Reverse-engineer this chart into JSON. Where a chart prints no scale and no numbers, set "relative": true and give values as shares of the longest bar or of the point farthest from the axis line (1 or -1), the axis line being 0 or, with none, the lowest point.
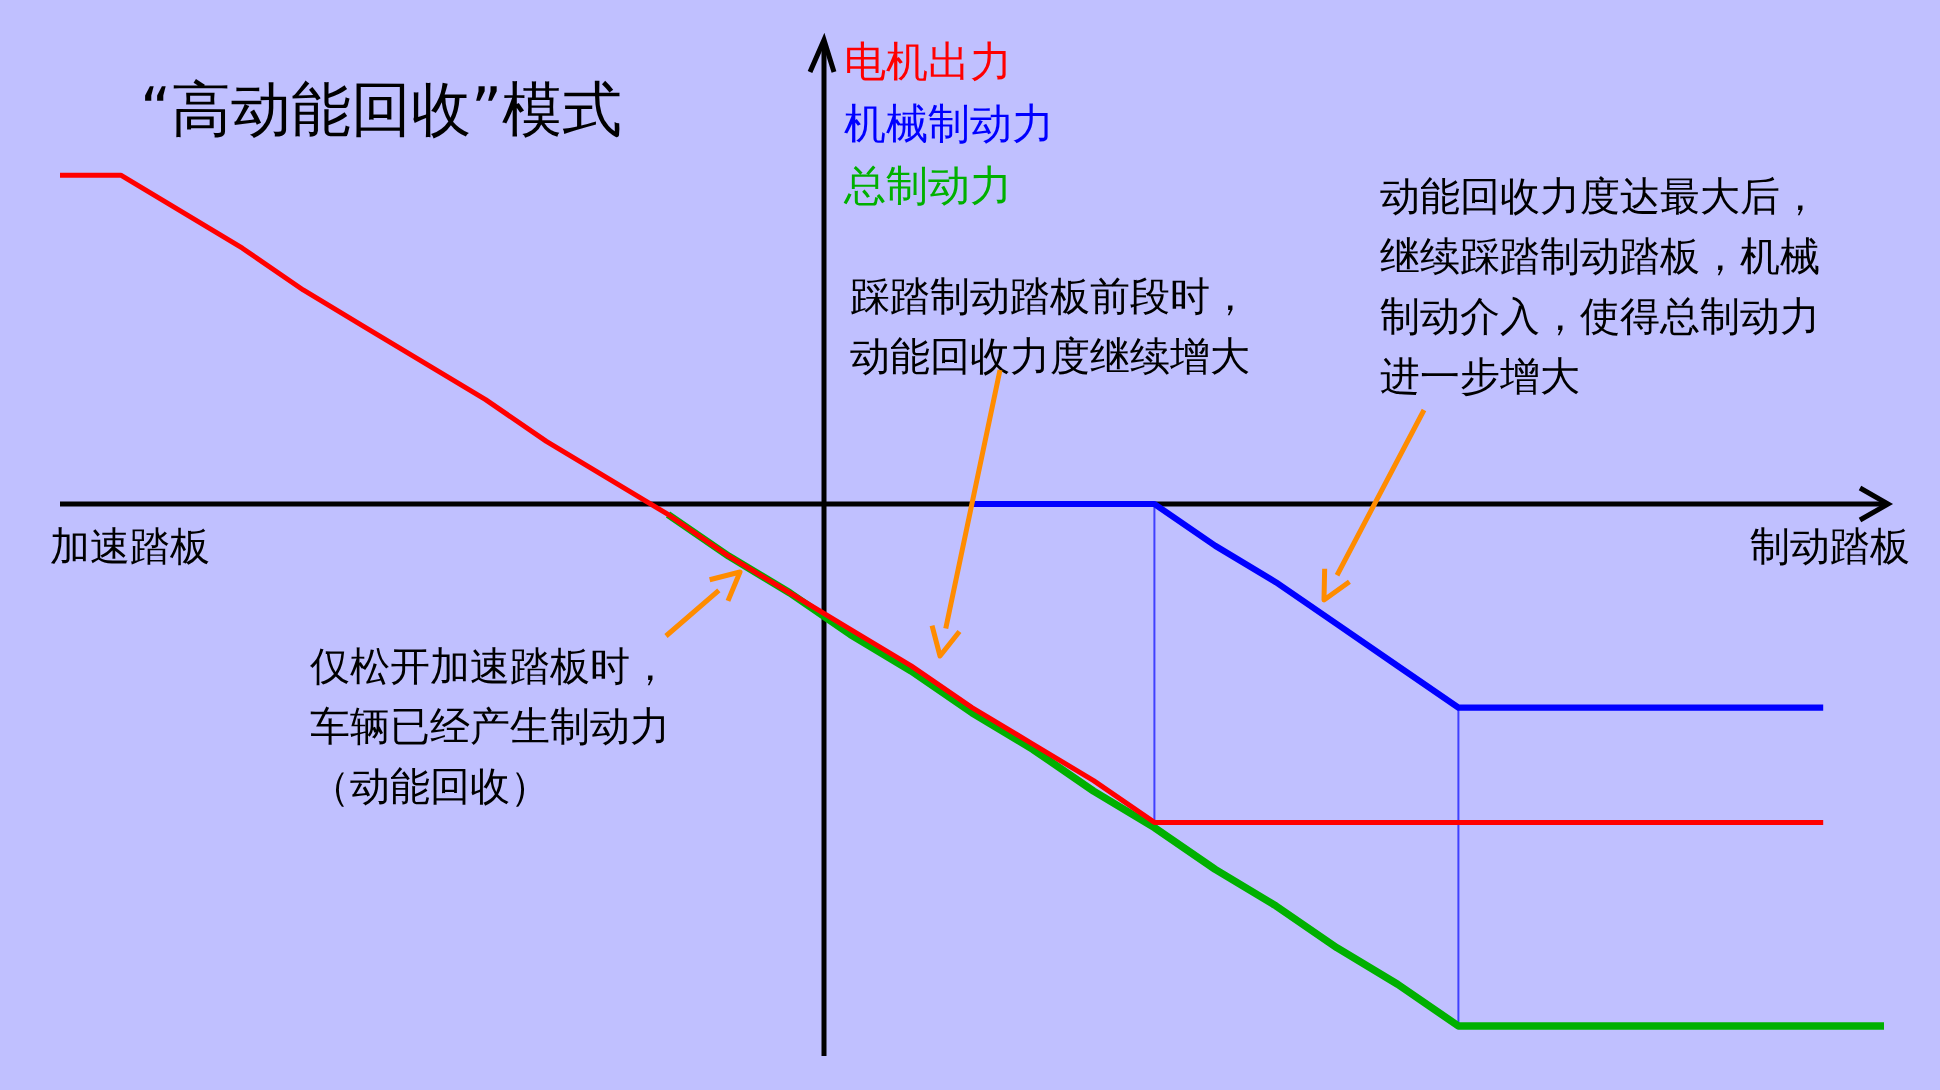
{
  "chart_data": {
    "type": "line",
    "title": "“高动能回收”模式",
    "xlabel": "制动踏板",
    "relative": true,
    "legend": "top",
    "grid": false,
    "marker": "none",
    "line_style": "solid",
    "categories": [
      null,
      null,
      null,
      null,
      null,
      null,
      null,
      null,
      null,
      null,
      null,
      null,
      null,
      null,
      null,
      null,
      null,
      null,
      null,
      null,
      null,
      null,
      null,
      null,
      null,
      null,
      null,
      null,
      null,
      null,
      null
    ],
    "series": [
      {
        "name": "电机出力",
        "color": "#ff0000",
        "values": [
          0.63,
          0.63,
          0.56,
          0.49,
          0.41,
          0.34,
          0.27,
          0.2,
          0.12,
          0.05,
          -0.02,
          -0.1,
          -0.17,
          -0.24,
          -0.31,
          -0.39,
          -0.46,
          -0.53,
          -0.61,
          -0.61,
          -0.61,
          -0.61,
          -0.61,
          -0.61,
          -0.61,
          -0.61,
          -0.61,
          -0.61,
          -0.61,
          -0.61,
          null
        ]
      },
      {
        "name": "机械制动力",
        "color": "#0000ff",
        "values": [
          null,
          null,
          null,
          null,
          null,
          null,
          null,
          null,
          null,
          null,
          null,
          null,
          null,
          null,
          null,
          0,
          0,
          0,
          0,
          -0.08,
          -0.15,
          -0.23,
          -0.31,
          -0.39,
          -0.39,
          -0.39,
          -0.39,
          -0.39,
          -0.39,
          -0.39,
          null
        ]
      },
      {
        "name": "总制动力",
        "color": "#00b000",
        "values": [
          null,
          null,
          null,
          null,
          null,
          null,
          null,
          null,
          null,
          null,
          -0.02,
          -0.1,
          -0.17,
          -0.25,
          -0.32,
          -0.4,
          -0.47,
          -0.55,
          -0.62,
          -0.7,
          -0.77,
          -0.85,
          -0.92,
          -1,
          -1,
          -1,
          -1,
          -1,
          -1,
          -1,
          -1
        ]
      }
    ],
    "annotations": [
      "加速踏板",
      "踩踏制动踏板前段时，动能回收力度继续增大",
      "动能回收力度达最大后，继续踩踏制动踏板，机械制动介入，使得总制动力进一步增大",
      "仅松开加速踏板时，车辆已经产生制动力（动能回收）"
    ]
  }
}
